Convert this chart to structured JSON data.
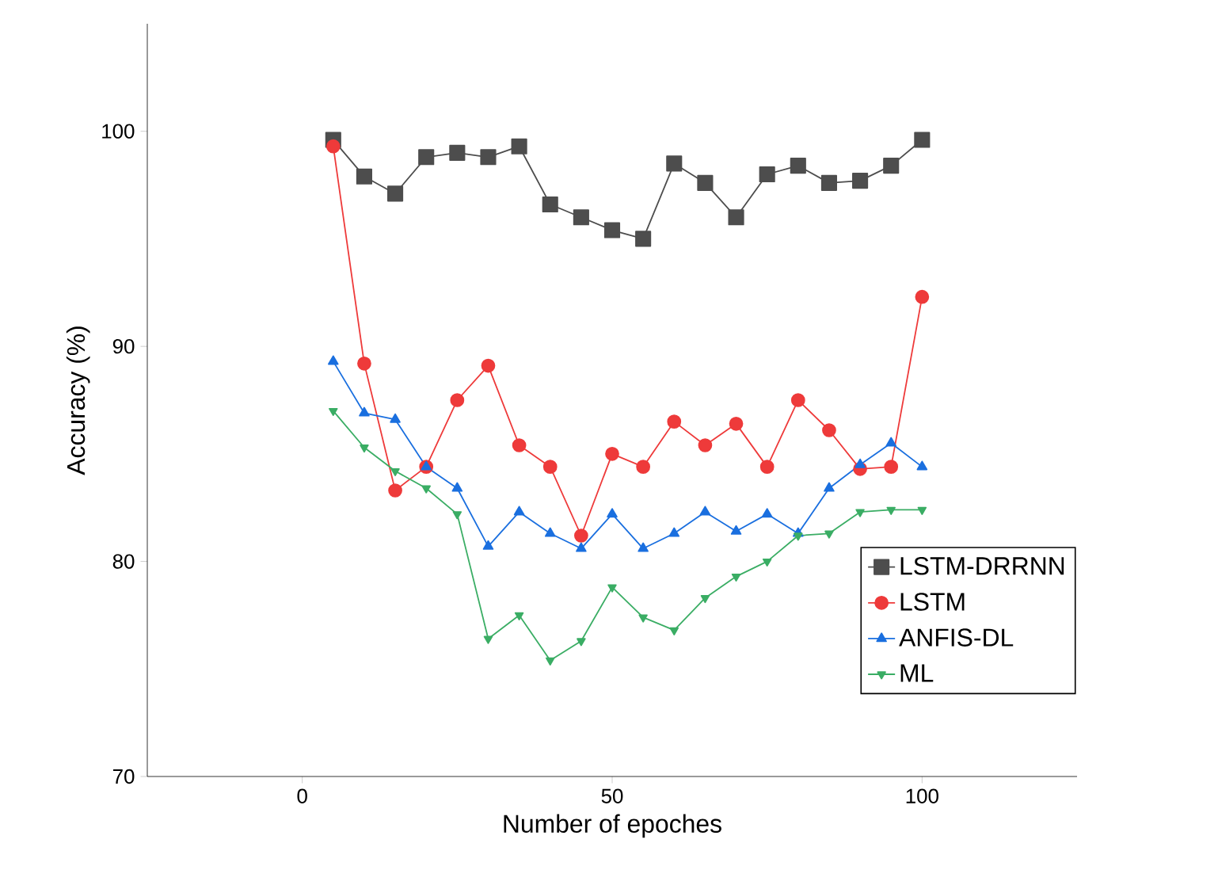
{
  "chart_data": {
    "type": "line",
    "xlabel": "Number of epoches",
    "ylabel": "Accuracy (%)",
    "x": [
      5,
      10,
      15,
      20,
      25,
      30,
      35,
      40,
      45,
      50,
      55,
      60,
      65,
      70,
      75,
      80,
      85,
      90,
      95,
      100
    ],
    "series": [
      {
        "name": "LSTM-DRRNN",
        "color": "#4d4d4d",
        "marker": "square",
        "values": [
          99.6,
          97.9,
          97.1,
          98.8,
          99.0,
          98.8,
          99.3,
          96.6,
          96.0,
          95.4,
          95.0,
          98.5,
          97.6,
          96.0,
          98.0,
          98.4,
          97.6,
          97.7,
          98.4,
          99.6
        ]
      },
      {
        "name": "LSTM",
        "color": "#ee3a3a",
        "marker": "circle",
        "values": [
          99.3,
          89.2,
          83.3,
          84.4,
          87.5,
          89.1,
          85.4,
          84.4,
          81.2,
          85.0,
          84.4,
          86.5,
          85.4,
          86.4,
          84.4,
          87.5,
          86.1,
          84.3,
          84.4,
          92.3
        ]
      },
      {
        "name": "ANFIS-DL",
        "color": "#1a6fdf",
        "marker": "triangle",
        "values": [
          89.3,
          86.9,
          86.6,
          84.4,
          83.4,
          80.7,
          82.3,
          81.3,
          80.6,
          82.2,
          80.6,
          81.3,
          82.3,
          81.4,
          82.2,
          81.3,
          83.4,
          84.5,
          85.5,
          84.4
        ]
      },
      {
        "name": "ML",
        "color": "#3aad64",
        "marker": "triangle down",
        "values": [
          87.0,
          85.3,
          84.2,
          83.4,
          82.2,
          76.4,
          77.5,
          75.4,
          76.3,
          78.8,
          77.4,
          76.8,
          78.3,
          79.3,
          80.0,
          81.2,
          81.3,
          82.3,
          82.4,
          82.4
        ]
      }
    ],
    "xlim": [
      -25,
      125
    ],
    "xticks": [
      0,
      50,
      100
    ],
    "ylim": [
      70,
      105
    ],
    "yticks": [
      70,
      80,
      90,
      100
    ],
    "grid": false,
    "legend": "right",
    "line_style": "solid"
  }
}
